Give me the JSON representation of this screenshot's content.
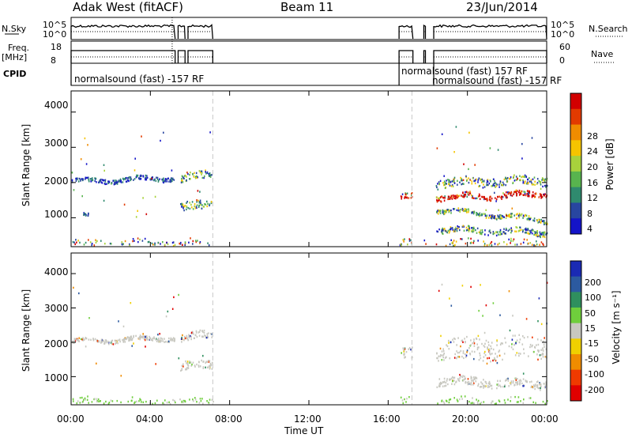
{
  "header": {
    "station": "Adak West (fitACF)",
    "beam": "Beam 11",
    "date": "23/Jun/2014"
  },
  "summary": {
    "nsky_label": "N.Sky",
    "nsky_ticks": [
      "10^5",
      "10^0"
    ],
    "nsky_right_ticks": [
      "10^5",
      "10^0"
    ],
    "nsearch_label": "N.Search",
    "freq_label": "Freq.",
    "freq_unit": "[MHz]",
    "freq_ticks": [
      "18",
      "8"
    ],
    "nave_ticks": [
      "60",
      "0"
    ],
    "nave_label": "Nave",
    "cpid_label": "CPID",
    "cpid_entries": [
      {
        "text": "normalsound (fast) -157 RF",
        "start_hour": 0.0
      },
      {
        "text": "normalsound (fast) 157 RF",
        "start_hour": 16.55
      },
      {
        "text": "normalsound (fast) -157 RF",
        "start_hour": 18.3
      }
    ],
    "data_segments_hours": [
      [
        0.0,
        5.25
      ],
      [
        5.4,
        5.75
      ],
      [
        5.9,
        7.15
      ],
      [
        16.55,
        17.25
      ],
      [
        17.8,
        17.88
      ],
      [
        18.3,
        24.0
      ]
    ]
  },
  "chart_data": [
    {
      "type": "heatmap",
      "title": "Power",
      "xlabel": "Time UT",
      "ylabel": "Slant Range [km]",
      "xlim_hours": [
        0,
        24
      ],
      "x_tick_labels": [
        "00:00",
        "04:00",
        "08:00",
        "12:00",
        "16:00",
        "20:00",
        "00:00"
      ],
      "x_tick_hours": [
        0,
        4,
        8,
        12,
        16,
        20,
        24
      ],
      "ylim_km": [
        180,
        4600
      ],
      "y_ticks": [
        1000,
        2000,
        3000,
        4000
      ],
      "colorbar": {
        "label": "Power [dB]",
        "ticks": [
          "4",
          "8",
          "12",
          "16",
          "20",
          "24",
          "28"
        ],
        "colors": [
          "#1414c8",
          "#2846a0",
          "#2f8a6e",
          "#58b44e",
          "#a8d23c",
          "#f5c400",
          "#f08c00",
          "#e23a00",
          "#d20000"
        ]
      },
      "scatter_bands": [
        {
          "t0": 0.0,
          "t1": 5.2,
          "r_start": 2050,
          "r_end": 2150,
          "width": 120,
          "level": "low"
        },
        {
          "t0": 0.6,
          "t1": 1.0,
          "r_start": 1070,
          "r_end": 1050,
          "width": 80,
          "level": "low"
        },
        {
          "t0": 5.5,
          "t1": 7.1,
          "r_start": 2100,
          "r_end": 2300,
          "width": 220,
          "level": "mid"
        },
        {
          "t0": 5.5,
          "t1": 7.1,
          "r_start": 1300,
          "r_end": 1400,
          "width": 250,
          "level": "mid"
        },
        {
          "t0": 16.6,
          "t1": 17.2,
          "r_start": 1600,
          "r_end": 1600,
          "width": 150,
          "level": "high"
        },
        {
          "t0": 18.4,
          "t1": 24.0,
          "r_start": 1600,
          "r_end": 1700,
          "width": 160,
          "level": "high"
        },
        {
          "t0": 18.4,
          "t1": 24.0,
          "r_start": 2000,
          "r_end": 2100,
          "width": 250,
          "level": "mid"
        },
        {
          "t0": 18.4,
          "t1": 24.0,
          "r_start": 1250,
          "r_end": 950,
          "width": 120,
          "level": "mid"
        },
        {
          "t0": 18.4,
          "t1": 24.0,
          "r_start": 700,
          "r_end": 600,
          "width": 160,
          "level": "mid"
        },
        {
          "t0": 0.0,
          "t1": 24.0,
          "r_start": 300,
          "r_end": 300,
          "width": 200,
          "level": "ground"
        }
      ]
    },
    {
      "type": "heatmap",
      "title": "Velocity",
      "xlabel": "Time UT",
      "ylabel": "Slant Range [km]",
      "xlim_hours": [
        0,
        24
      ],
      "x_tick_labels": [
        "00:00",
        "04:00",
        "08:00",
        "12:00",
        "16:00",
        "20:00",
        "00:00"
      ],
      "x_tick_hours": [
        0,
        4,
        8,
        12,
        16,
        20,
        24
      ],
      "ylim_km": [
        180,
        4600
      ],
      "y_ticks": [
        1000,
        2000,
        3000,
        4000
      ],
      "colorbar": {
        "label": "Velocity [m s⁻¹]",
        "ticks": [
          "200",
          "100",
          "50",
          "15",
          "-15",
          "-50",
          "-100",
          "-200"
        ],
        "colors": [
          "#1a2ab4",
          "#2c5aa0",
          "#2f8f5e",
          "#6fce3c",
          "#c8c8c0",
          "#f0d000",
          "#f08c00",
          "#ef3a00",
          "#e00000"
        ]
      },
      "scatter_bands": [
        {
          "t0": 0.0,
          "t1": 5.2,
          "r_start": 2050,
          "r_end": 2150,
          "width": 120,
          "level": "gray"
        },
        {
          "t0": 5.5,
          "t1": 7.1,
          "r_start": 2100,
          "r_end": 2300,
          "width": 220,
          "level": "gray"
        },
        {
          "t0": 5.5,
          "t1": 7.1,
          "r_start": 1300,
          "r_end": 1400,
          "width": 250,
          "level": "gray"
        },
        {
          "t0": 16.6,
          "t1": 17.2,
          "r_start": 1700,
          "r_end": 1700,
          "width": 400,
          "level": "gray"
        },
        {
          "t0": 18.4,
          "t1": 24.0,
          "r_start": 1800,
          "r_end": 1900,
          "width": 650,
          "level": "gray"
        },
        {
          "t0": 18.4,
          "t1": 24.0,
          "r_start": 900,
          "r_end": 800,
          "width": 250,
          "level": "gray"
        },
        {
          "t0": 0.0,
          "t1": 24.0,
          "r_start": 300,
          "r_end": 300,
          "width": 200,
          "level": "ground"
        }
      ]
    }
  ]
}
